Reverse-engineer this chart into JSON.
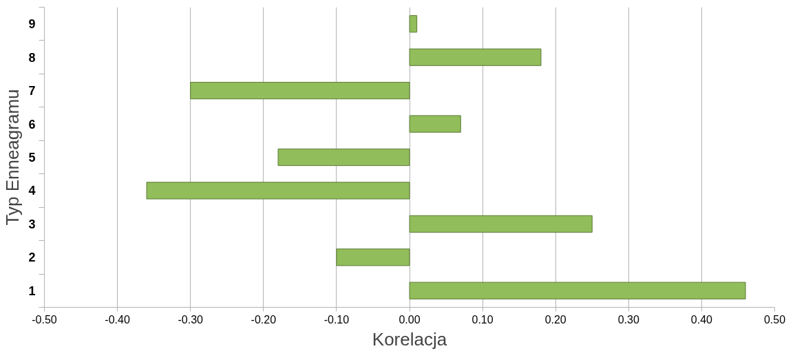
{
  "chart_data": {
    "type": "bar",
    "orientation": "horizontal",
    "xlabel": "Korelacja",
    "ylabel": "Typ Enneagramu",
    "categories": [
      "9",
      "8",
      "7",
      "6",
      "5",
      "4",
      "3",
      "2",
      "1"
    ],
    "values": [
      0.01,
      0.18,
      -0.3,
      0.07,
      -0.18,
      -0.36,
      0.25,
      -0.1,
      0.46
    ],
    "color": "#92bd5b",
    "xlim": [
      -0.5,
      0.5
    ],
    "xticks": [
      {
        "value": -0.5,
        "label": "-0.50"
      },
      {
        "value": -0.4,
        "label": "-0.40"
      },
      {
        "value": -0.3,
        "label": "-0.30"
      },
      {
        "value": -0.2,
        "label": "-0.20"
      },
      {
        "value": -0.1,
        "label": "-0.10"
      },
      {
        "value": 0,
        "label": "0.00"
      },
      {
        "value": 0.1,
        "label": "0.10"
      },
      {
        "value": 0.2,
        "label": "0.20"
      },
      {
        "value": 0.3,
        "label": "0.30"
      },
      {
        "value": 0.4,
        "label": "0.40"
      },
      {
        "value": 0.5,
        "label": "0.50"
      }
    ],
    "grid": "x"
  }
}
